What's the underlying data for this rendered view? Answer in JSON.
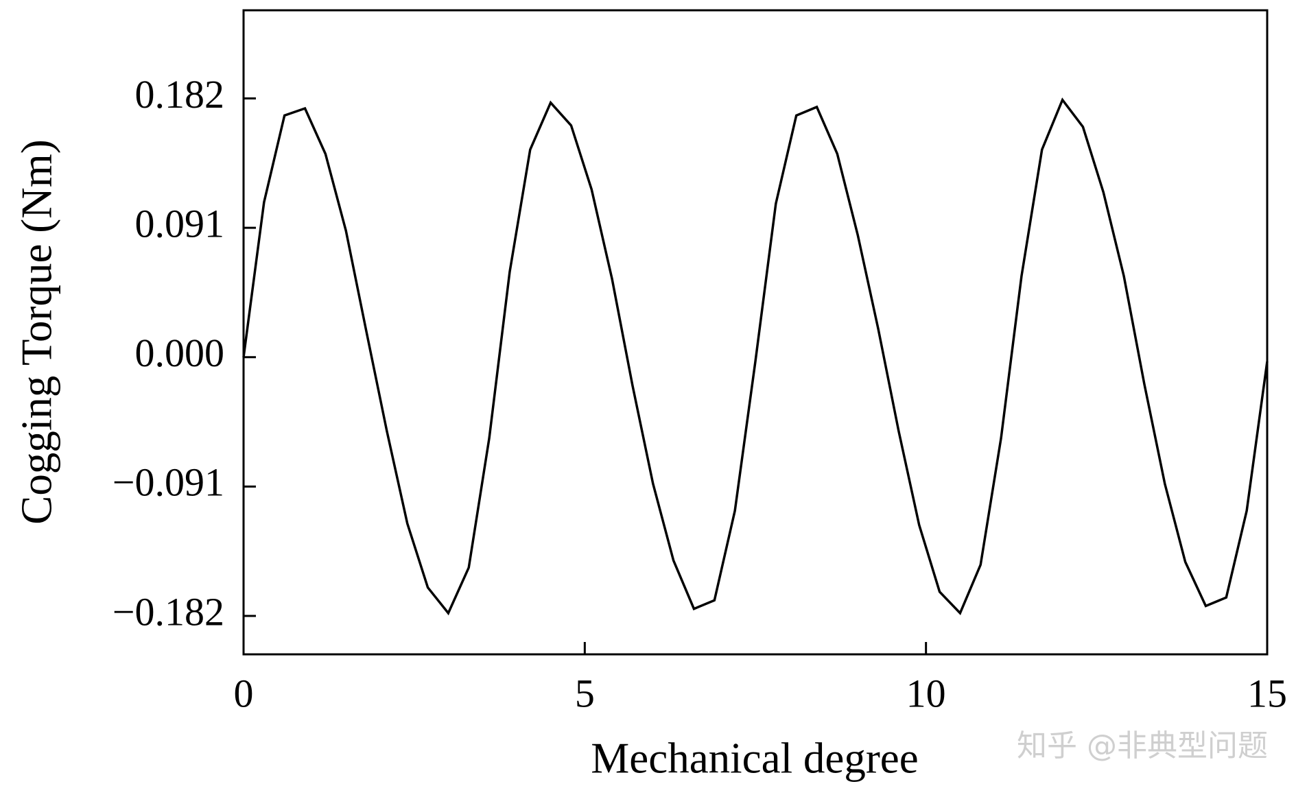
{
  "chart_data": {
    "type": "line",
    "xlabel": "Mechanical degree",
    "ylabel": "Cogging Torque (Nm)",
    "watermark": "知乎 @非典型问题",
    "x": [
      0,
      0.3,
      0.6,
      0.9,
      1.2,
      1.5,
      1.8,
      2.1,
      2.4,
      2.7,
      3.0,
      3.3,
      3.6,
      3.9,
      4.2,
      4.5,
      4.8,
      5.1,
      5.4,
      5.7,
      6.0,
      6.3,
      6.6,
      6.9,
      7.2,
      7.5,
      7.8,
      8.1,
      8.4,
      8.7,
      9.0,
      9.3,
      9.6,
      9.9,
      10.2,
      10.5,
      10.8,
      11.1,
      11.4,
      11.7,
      12.0,
      12.3,
      12.6,
      12.9,
      13.2,
      13.5,
      13.8,
      14.1,
      14.4,
      14.7,
      15.0
    ],
    "series": [
      {
        "color": "#000000",
        "values": [
          0,
          0.109,
          0.17,
          0.175,
          0.143,
          0.089,
          0.018,
          -0.052,
          -0.117,
          -0.162,
          -0.18,
          -0.148,
          -0.057,
          0.06,
          0.146,
          0.179,
          0.163,
          0.118,
          0.055,
          -0.02,
          -0.089,
          -0.143,
          -0.177,
          -0.171,
          -0.108,
          -0.003,
          0.108,
          0.17,
          0.176,
          0.143,
          0.086,
          0.02,
          -0.052,
          -0.118,
          -0.165,
          -0.18,
          -0.146,
          -0.057,
          0.057,
          0.146,
          0.181,
          0.162,
          0.116,
          0.057,
          -0.019,
          -0.089,
          -0.144,
          -0.175,
          -0.169,
          -0.108,
          -0.003
        ]
      }
    ],
    "xlim": [
      0,
      15
    ],
    "xticks": [
      0,
      5,
      10,
      15
    ],
    "ylim": [
      -0.209,
      0.244
    ],
    "yticks": [
      {
        "value": -0.182,
        "label": "−0.182"
      },
      {
        "value": -0.091,
        "label": "−0.091"
      },
      {
        "value": 0,
        "label": "0.000"
      },
      0.091,
      0.182
    ],
    "grid": false
  }
}
